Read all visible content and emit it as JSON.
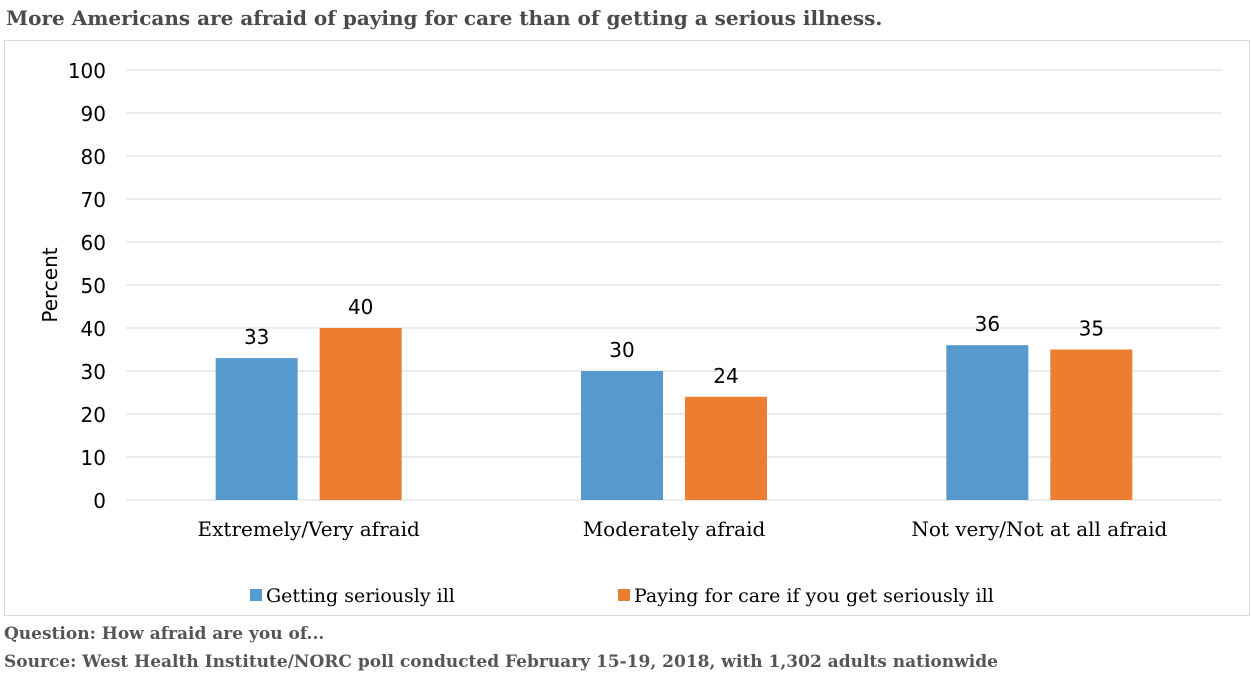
{
  "title": "More Americans are afraid of paying for care than of getting a serious illness.",
  "footer": {
    "question": "Question: How afraid are you of...",
    "source": "Source: West Health Institute/NORC poll conducted February 15-19, 2018, with 1,302 adults nationwide"
  },
  "chart_data": {
    "type": "bar",
    "title": "More Americans are afraid of paying for care than of getting a serious illness.",
    "xlabel": "",
    "ylabel": "Percent",
    "ylim": [
      0,
      100
    ],
    "yticks": [
      "0",
      "10",
      "20",
      "30",
      "40",
      "50",
      "60",
      "70",
      "80",
      "90",
      "100"
    ],
    "grid": true,
    "legend": "bottom",
    "categories": [
      "Extremely/Very afraid",
      "Moderately afraid",
      "Not very/Not at all afraid"
    ],
    "series": [
      {
        "name": "Getting seriously ill",
        "values": [
          33,
          30,
          36
        ],
        "color": "#5599cf"
      },
      {
        "name": "Paying for care if you get seriously ill",
        "values": [
          40,
          24,
          35
        ],
        "color": "#ed7d31"
      }
    ]
  }
}
